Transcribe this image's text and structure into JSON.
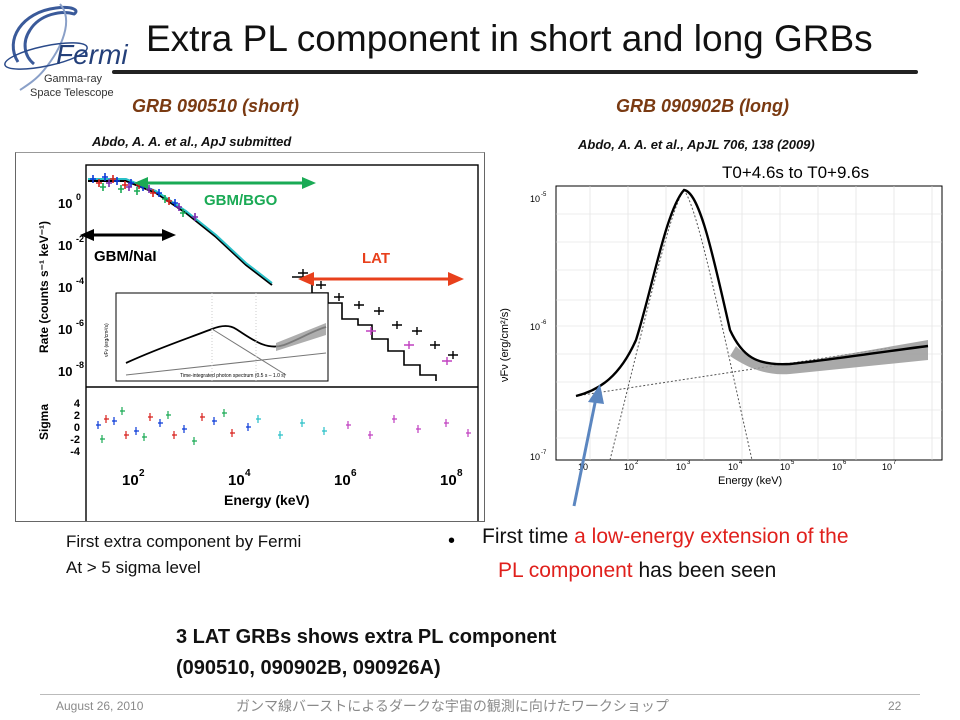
{
  "logo": {
    "name": "Fermi",
    "line1": "Gamma-ray",
    "line2": "Space Telescope"
  },
  "title": "Extra PL component in short and long GRBs",
  "left_panel": {
    "heading": "GRB 090510 (short)",
    "citation": "Abdo, A. A. et al., ApJ submitted",
    "labels": {
      "gbm_bgo": "GBM/BGO",
      "gbm_nai": "GBM/NaI",
      "lat": "LAT",
      "ylabel_rate": "Rate (counts s⁻¹ keV⁻¹)",
      "ylabel_sigma": "Sigma",
      "xlabel": "Energy (keV)",
      "inset_caption": "Time-integrated photon spectrum (0.5 s – 1.0 s)",
      "inset_ylabel": "νFν (erg/cm²/s)"
    },
    "x_ticks": [
      "10",
      "10",
      "10",
      "10"
    ],
    "x_tick_exps": [
      "2",
      "4",
      "6",
      "8"
    ],
    "y_ticks": [
      "10",
      "10",
      "10",
      "10",
      "10"
    ],
    "y_tick_exps": [
      "0",
      "-2",
      "-4",
      "-6",
      "-8"
    ],
    "sigma_ticks": [
      "4",
      "2",
      "0",
      "-2",
      "-4"
    ]
  },
  "right_panel": {
    "heading": "GRB 090902B (long)",
    "citation": "Abdo, A. A. et al., ApJL 706, 138 (2009)",
    "interval": "T0+4.6s to T0+9.6s",
    "xlabel": "Energy (keV)",
    "ylabel": "νFν (erg/cm²/s)",
    "x_ticks": [
      "10",
      "10",
      "10",
      "10",
      "10",
      "10",
      "10"
    ],
    "x_tick_exps": [
      "2",
      "3",
      "4",
      "5",
      "6",
      "7"
    ],
    "x_first_tick": "10",
    "y_ticks": [
      "10",
      "10",
      "10"
    ],
    "y_tick_exps": [
      "-5",
      "-6",
      "-7"
    ]
  },
  "notes": {
    "left_line1": "First extra component  by Fermi",
    "left_line2": "At > 5 sigma level",
    "bullet": "•",
    "bullet_pre": "First time ",
    "bullet_red1": "a low-energy extension of the",
    "bullet_red2": "PL component",
    "bullet_post": " has been seen"
  },
  "summary": {
    "line1": "3 LAT GRBs shows extra PL component",
    "line2": "(090510, 090902B, 090926A)"
  },
  "footer": {
    "date": "August 26, 2010",
    "workshop": "ガンマ線バーストによるダークな宇宙の観測に向けたワークショップ",
    "page": "22"
  },
  "colors": {
    "heading": "#7a3a12",
    "highlight": "#e0201c",
    "gbm_bgo": "#1aaa55",
    "lat": "#e8401c",
    "model_band": "#9a9a9a",
    "arrow": "#5b86c0"
  }
}
